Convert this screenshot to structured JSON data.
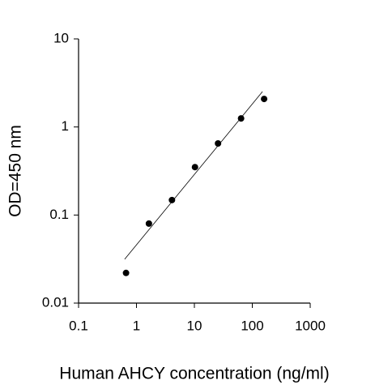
{
  "chart_data": {
    "type": "scatter",
    "x_label": "Human AHCY concentration (ng/ml)",
    "y_label": "OD=450 nm",
    "x": [
      0.66,
      1.64,
      4.1,
      10.24,
      25.6,
      64,
      160
    ],
    "values": [
      0.022,
      0.08,
      0.148,
      0.35,
      0.65,
      1.25,
      2.08
    ],
    "color": "#000000",
    "fit_line": {
      "x": [
        0.625,
        150
      ],
      "y": [
        0.0315,
        2.52
      ]
    },
    "xscale": "log",
    "yscale": "log",
    "xlim": [
      0.1,
      1000
    ],
    "ylim": [
      0.01,
      10
    ],
    "xticks": [
      0.1,
      1,
      10,
      100,
      1000
    ],
    "yticks": [
      0.01,
      0.1,
      1,
      10
    ],
    "grid": false
  }
}
